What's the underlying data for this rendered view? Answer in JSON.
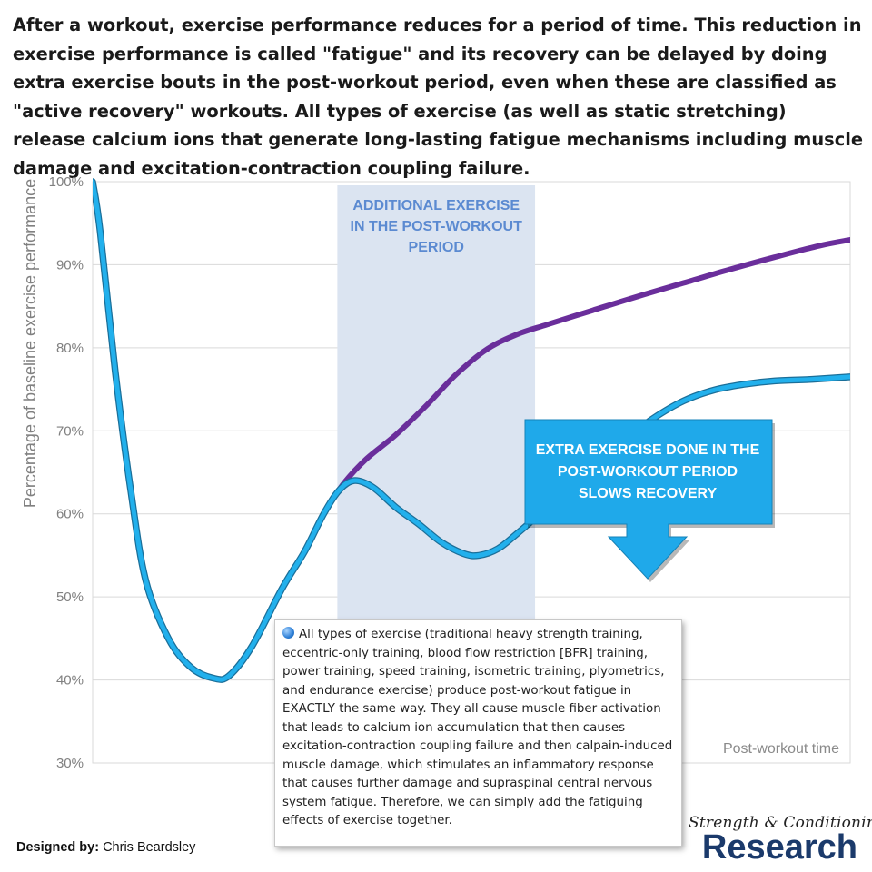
{
  "intro_text": "After a workout, exercise performance reduces for a period of time. This reduction in exercise performance is called \"fatigue\" and its recovery can be delayed by doing extra exercise bouts in the post-workout period, even when these are classified as \"active recovery\" workouts. All types of exercise (as well as static stretching) release calcium ions that generate long-lasting fatigue mechanisms including muscle damage and excitation-contraction coupling failure.",
  "chart_data": {
    "type": "line",
    "xlabel": "Post-workout time",
    "ylabel": "Percentage of baseline exercise performance",
    "yticks": [
      "30%",
      "40%",
      "50%",
      "60%",
      "70%",
      "80%",
      "90%",
      "100%"
    ],
    "ylim": [
      30,
      100
    ],
    "xlim": [
      0,
      100
    ],
    "grid": true,
    "shaded_region": {
      "x_start": 32.3,
      "x_end": 58.4,
      "label_lines": [
        "ADDITIONAL EXERCISE",
        "IN THE POST-WORKOUT",
        "PERIOD"
      ],
      "color": "#dbe4f1"
    },
    "series": [
      {
        "color": "#6a2e9b",
        "x": [
          0,
          1,
          3,
          5,
          7,
          10,
          13,
          16,
          18,
          21,
          25,
          28,
          30.5,
          33,
          36,
          40,
          44,
          48,
          52,
          56,
          60,
          66,
          72,
          78,
          84,
          90,
          96,
          100
        ],
        "y": [
          100,
          94,
          77,
          63,
          52,
          45,
          41.5,
          40.2,
          40.5,
          44,
          51,
          55.5,
          60,
          63.5,
          66.5,
          69.5,
          73,
          76.8,
          79.8,
          81.6,
          82.8,
          84.5,
          86.2,
          87.8,
          89.4,
          90.9,
          92.3,
          93
        ]
      },
      {
        "color": "#22b0ec",
        "x": [
          0,
          1,
          3,
          5,
          7,
          10,
          13,
          16,
          18,
          21,
          25,
          28,
          30.5,
          32.5,
          34.5,
          37,
          40,
          43,
          46,
          49,
          51,
          53.5,
          56,
          58.5,
          62,
          66,
          70,
          74,
          78,
          82,
          86,
          90,
          95,
          100
        ],
        "y": [
          100,
          94,
          77,
          63,
          52,
          45,
          41.5,
          40.2,
          40.5,
          44,
          51,
          55.5,
          60,
          62.8,
          64,
          63.2,
          60.8,
          58.8,
          56.6,
          55.2,
          55,
          55.8,
          57.6,
          59.6,
          62.8,
          66,
          68.8,
          71.5,
          73.6,
          74.9,
          75.6,
          76,
          76.2,
          76.5
        ]
      }
    ],
    "callout": {
      "lines": [
        "EXTRA EXERCISE DONE IN THE",
        "POST-WORKOUT PERIOD",
        "SLOWS RECOVERY"
      ],
      "color": "#1fa9ea"
    }
  },
  "note_text": "All types of exercise (traditional heavy strength training, eccentric-only training, blood flow restriction [BFR] training, power training, speed training, isometric training, plyometrics, and endurance exercise) produce post-workout fatigue in EXACTLY the same way. They all cause muscle fiber activation that leads to calcium ion accumulation that then causes excitation-contraction coupling failure and then calpain-induced muscle damage, which stimulates an inflammatory response that causes further damage and supraspinal central nervous system fatigue. Therefore, we can simply add the fatiguing effects of exercise together.",
  "note_icon": "pushpin-icon",
  "credit": {
    "label": "Designed by:",
    "name": "Chris Beardsley"
  },
  "brand": {
    "tagline": "Strength & Conditioning",
    "name": "Research"
  }
}
